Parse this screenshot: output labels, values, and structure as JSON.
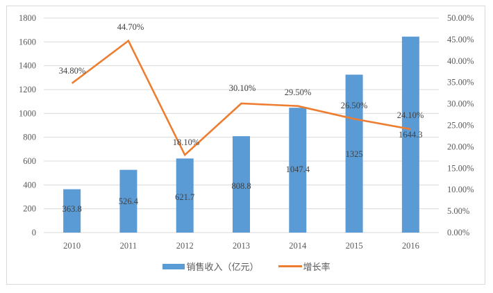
{
  "chart_data": {
    "type": "bar+line",
    "categories": [
      "2010",
      "2011",
      "2012",
      "2013",
      "2014",
      "2015",
      "2016"
    ],
    "series": [
      {
        "name": "销售收入（亿元）",
        "type": "bar",
        "axis": "left",
        "color": "#5b9bd5",
        "values": [
          363.8,
          526.4,
          621.7,
          808.8,
          1047.4,
          1325,
          1644.3
        ],
        "labels": [
          "363.8",
          "526.4",
          "621.7",
          "808.8",
          "1047.4",
          "1325",
          "1644.3"
        ]
      },
      {
        "name": "增长率",
        "type": "line",
        "axis": "right",
        "color": "#ed7d31",
        "values": [
          34.8,
          44.7,
          18.1,
          30.1,
          29.5,
          26.5,
          24.1
        ],
        "labels": [
          "34.80%",
          "44.70%",
          "18.10%",
          "30.10%",
          "29.50%",
          "26.50%",
          "24.10%"
        ]
      }
    ],
    "title": "",
    "xlabel": "",
    "ylabel": "",
    "ylim": [
      0,
      1800
    ],
    "y_ticks": [
      "0",
      "200",
      "400",
      "600",
      "800",
      "1000",
      "1200",
      "1400",
      "1600",
      "1800"
    ],
    "y2lim": [
      0,
      50
    ],
    "y2_ticks": [
      "0.00%",
      "5.00%",
      "10.00%",
      "15.00%",
      "20.00%",
      "25.00%",
      "30.00%",
      "35.00%",
      "40.00%",
      "45.00%",
      "50.00%"
    ],
    "grid": true,
    "legend_position": "bottom"
  },
  "legend": {
    "bar_label": "销售收入（亿元）",
    "line_label": "增长率",
    "bar_color": "#5b9bd5",
    "line_color": "#ed7d31"
  }
}
